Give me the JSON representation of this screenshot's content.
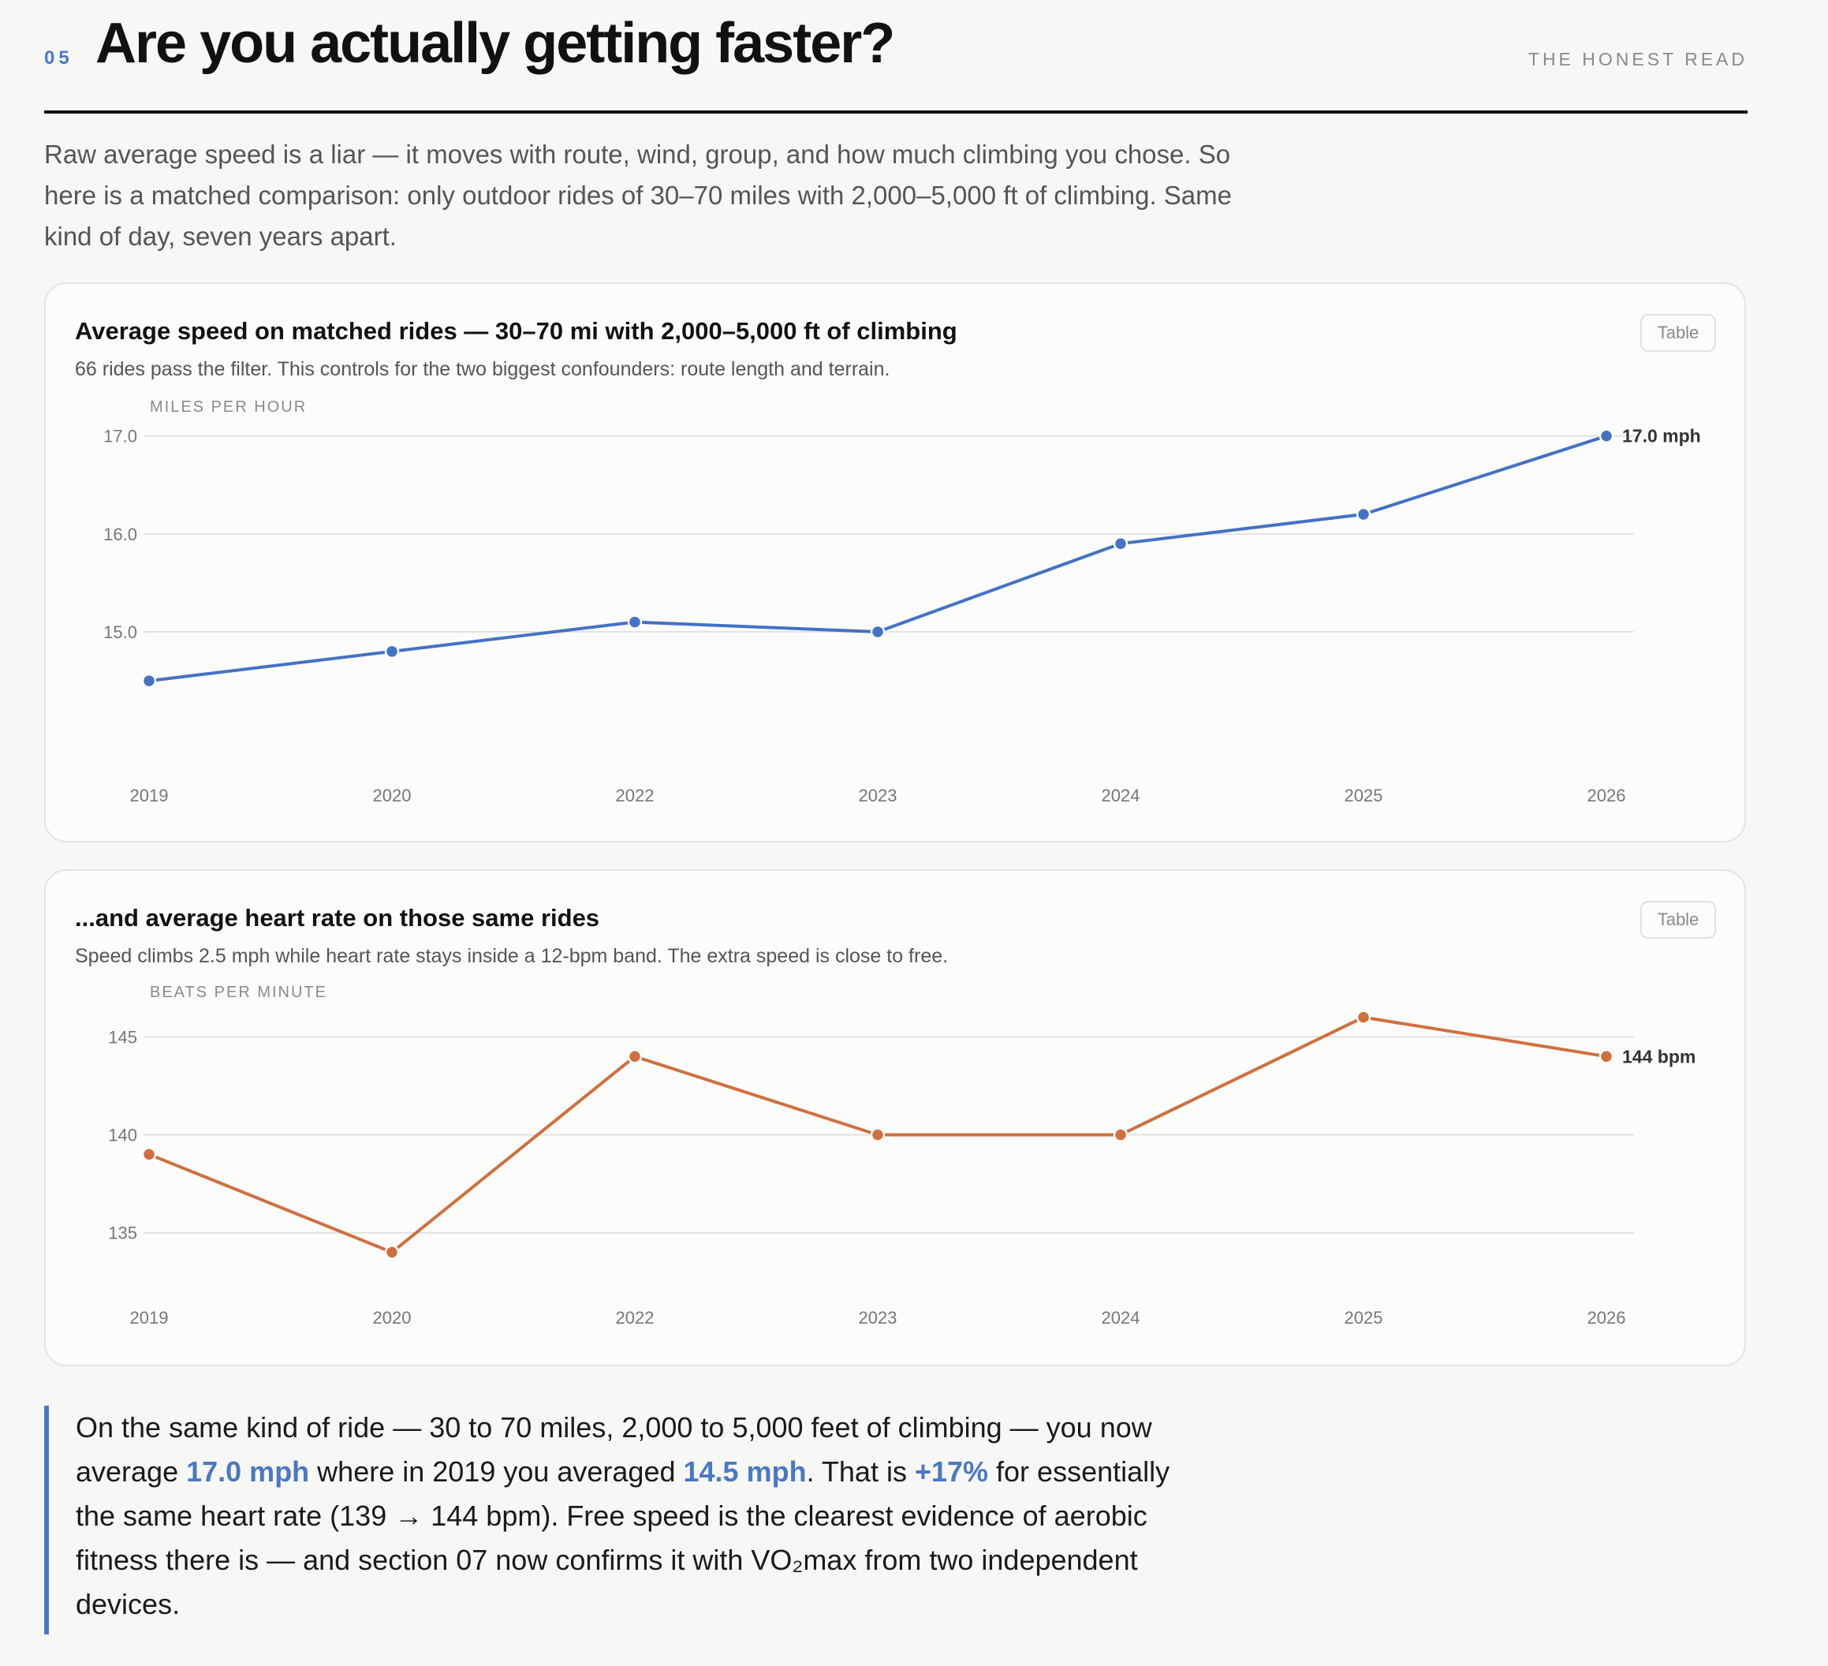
{
  "header": {
    "section_number": "05",
    "title": "Are you actually getting faster?",
    "kicker": "THE HONEST READ"
  },
  "intro": "Raw average speed is a liar — it moves with route, wind, group, and how much climbing you chose. So here is a matched comparison: only outdoor rides of 30–70 miles with 2,000–5,000 ft of climbing. Same kind of day, seven years apart.",
  "colors": {
    "accent": "#4a78c4",
    "speed_line": "#4472c4",
    "hr_line": "#d0703f"
  },
  "chart_data": [
    {
      "type": "line",
      "title": "Average speed on matched rides — 30–70 mi with 2,000–5,000 ft of climbing",
      "subtitle": "66 rides pass the filter. This controls for the two biggest confounders: route length and terrain.",
      "ylabel": "MILES PER HOUR",
      "xlabel": "",
      "categories": [
        "2019",
        "2020",
        "2022",
        "2023",
        "2024",
        "2025",
        "2026"
      ],
      "series": [
        {
          "values": [
            14.5,
            14.8,
            15.1,
            15.0,
            15.9,
            16.2,
            17.0
          ]
        }
      ],
      "yticks": [
        "15.0",
        "16.0",
        "17.0"
      ],
      "ylim": [
        13.8,
        17.4
      ],
      "end_label": "17.0 mph",
      "grid": true,
      "legend": "none",
      "button_label": "Table"
    },
    {
      "type": "line",
      "title": "...and average heart rate on those same rides",
      "subtitle": "Speed climbs 2.5 mph while heart rate stays inside a 12-bpm band. The extra speed is close to free.",
      "ylabel": "BEATS PER MINUTE",
      "xlabel": "",
      "categories": [
        "2019",
        "2020",
        "2022",
        "2023",
        "2024",
        "2025",
        "2026"
      ],
      "series": [
        {
          "values": [
            139,
            134,
            144,
            140,
            140,
            146,
            144
          ]
        }
      ],
      "yticks": [
        "135",
        "140",
        "145"
      ],
      "ylim": [
        131,
        148
      ],
      "end_label": "144 bpm",
      "grid": true,
      "legend": "none",
      "button_label": "Table"
    }
  ],
  "callout": {
    "part1": "On the same kind of ride — 30 to 70 miles, 2,000 to 5,000 feet of climbing — you now average ",
    "hl1": "17.0 mph",
    "part2": " where in 2019 you averaged ",
    "hl2": "14.5 mph",
    "part3": ". That is ",
    "hl3": "+17%",
    "part4": " for essentially the same heart rate (139 → 144 bpm). Free speed is the clearest evidence of aerobic fitness there is — and section 07 now confirms it with VO₂max from two independent devices."
  }
}
